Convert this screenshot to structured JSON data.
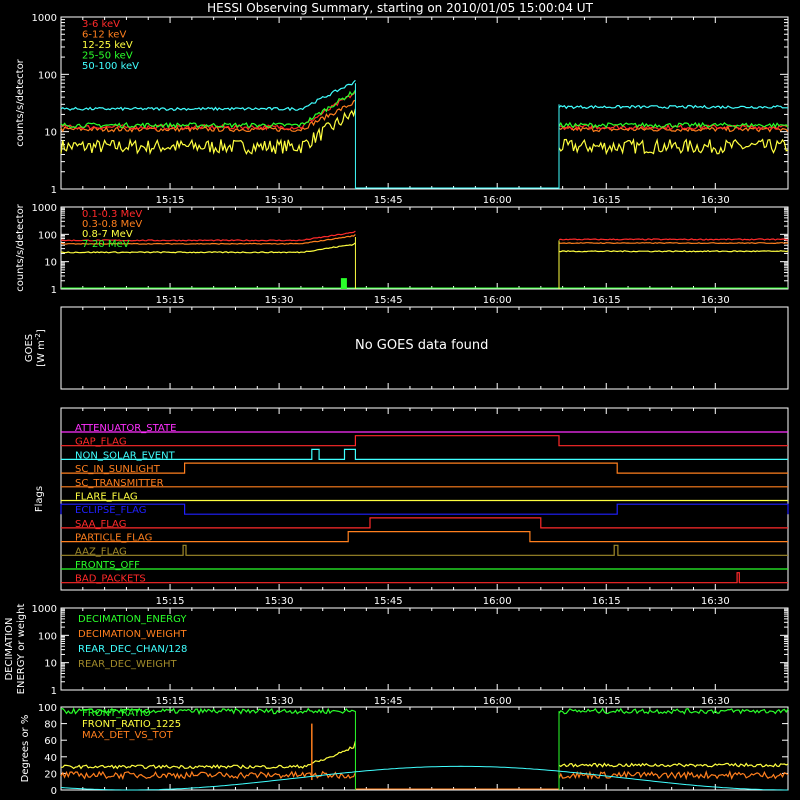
{
  "title": "HESSI Observing Summary, starting on 2010/01/05 15:00:04 UT",
  "time_ticks": [
    "15:15",
    "15:30",
    "15:45",
    "16:00",
    "16:15",
    "16:30"
  ],
  "time_tick_minutes": [
    15,
    30,
    45,
    60,
    75,
    90
  ],
  "colors": {
    "red": "#ff2a2a",
    "orange": "#ff7f1e",
    "yellow": "#ffff40",
    "green": "#2aff2a",
    "cyan": "#40ffff",
    "blue": "#2020ff",
    "magenta": "#ff30ff",
    "olive": "#a08a2a",
    "white": "#ffffff"
  },
  "panels": {
    "p1": {
      "ylabel": "counts/s/detector",
      "ytick_labels": [
        "1",
        "10",
        "100",
        "1000"
      ],
      "legend": [
        {
          "text": "3-6 keV",
          "color": "red"
        },
        {
          "text": "6-12 keV",
          "color": "orange"
        },
        {
          "text": "12-25 keV",
          "color": "yellow"
        },
        {
          "text": "25-50 keV",
          "color": "green"
        },
        {
          "text": "50-100 keV",
          "color": "cyan"
        }
      ]
    },
    "p2": {
      "ylabel": "counts/s/detector",
      "ytick_labels": [
        "1",
        "10",
        "100",
        "1000"
      ],
      "legend": [
        {
          "text": "0.1-0.3 MeV",
          "color": "red"
        },
        {
          "text": "0.3-0.8 MeV",
          "color": "orange"
        },
        {
          "text": "0.8-7 MeV",
          "color": "yellow"
        },
        {
          "text": "7-20 MeV",
          "color": "green"
        }
      ]
    },
    "p3": {
      "ylabel_line1": "GOES",
      "ylabel_line2": "[W m",
      "ylabel_sup": "-2",
      "ylabel_close": "]",
      "message": "No GOES data found"
    },
    "p4": {
      "ylabel": "Flags",
      "flags": [
        {
          "text": "ATTENUATOR_STATE",
          "color": "magenta"
        },
        {
          "text": "GAP_FLAG",
          "color": "red"
        },
        {
          "text": "NON_SOLAR_EVENT",
          "color": "cyan"
        },
        {
          "text": "SC_IN_SUNLIGHT",
          "color": "orange"
        },
        {
          "text": "SC_TRANSMITTER",
          "color": "orange"
        },
        {
          "text": "FLARE_FLAG",
          "color": "yellow"
        },
        {
          "text": "ECLIPSE_FLAG",
          "color": "blue"
        },
        {
          "text": "SAA_FLAG",
          "color": "red"
        },
        {
          "text": "PARTICLE_FLAG",
          "color": "orange"
        },
        {
          "text": "AAZ_FLAG",
          "color": "olive"
        },
        {
          "text": "FRONTS_OFF",
          "color": "green"
        },
        {
          "text": "BAD_PACKETS",
          "color": "red"
        }
      ]
    },
    "p5": {
      "ylabel_line1": "DECIMATION",
      "ylabel_line2": "ENERGY or weight",
      "ytick_labels": [
        "1",
        "10",
        "100",
        "1000"
      ],
      "legend": [
        {
          "text": "DECIMATION_ENERGY",
          "color": "green"
        },
        {
          "text": "DECIMATION_WEIGHT",
          "color": "orange"
        },
        {
          "text": "REAR_DEC_CHAN/128",
          "color": "cyan"
        },
        {
          "text": "REAR_DEC_WEIGHT",
          "color": "olive"
        }
      ]
    },
    "p6": {
      "ylabel": "Degrees or %",
      "ytick_labels": [
        "0",
        "20",
        "40",
        "60",
        "80",
        "100"
      ],
      "legend": [
        {
          "text": "FRONT_RATIO",
          "color": "green"
        },
        {
          "text": "FRONT_RATIO_1225",
          "color": "yellow"
        },
        {
          "text": "MAX_DET_VS_TOT",
          "color": "orange"
        }
      ]
    }
  },
  "chart_data": [
    {
      "type": "line",
      "panel": "p1",
      "xlabel": "",
      "ylabel": "counts/s/detector",
      "x_unit": "minutes after 15:00:04 UT",
      "xlim": [
        0,
        100
      ],
      "ylim": [
        1,
        1000
      ],
      "log_y": true,
      "data_gap_minutes": [
        40.5,
        68.5
      ],
      "series": [
        {
          "name": "3-6 keV",
          "color": "red",
          "pre": 12,
          "post": 12
        },
        {
          "name": "6-12 keV",
          "color": "orange",
          "pre": 11,
          "post": 11
        },
        {
          "name": "12-25 keV",
          "color": "yellow",
          "pre": 5.5,
          "post": 5.5
        },
        {
          "name": "25-50 keV",
          "color": "green",
          "pre": 13,
          "post": 13
        },
        {
          "name": "50-100 keV",
          "color": "cyan",
          "pre": 25,
          "post": 27
        }
      ]
    },
    {
      "type": "line",
      "panel": "p2",
      "xlabel": "",
      "ylabel": "counts/s/detector",
      "x_unit": "minutes after 15:00:04 UT",
      "xlim": [
        0,
        100
      ],
      "ylim": [
        1,
        1000
      ],
      "log_y": true,
      "series": [
        {
          "name": "0.1-0.3 MeV",
          "color": "red",
          "pre": 60,
          "post": 65
        },
        {
          "name": "0.3-0.8 MeV",
          "color": "orange",
          "pre": 45,
          "post": 48
        },
        {
          "name": "0.8-7 MeV",
          "color": "yellow",
          "pre": 22,
          "post": 24
        },
        {
          "name": "7-20 MeV",
          "color": "green",
          "pre": 1,
          "post": 1
        }
      ]
    },
    {
      "type": "line",
      "panel": "p4",
      "xlabel": "",
      "ylabel": "Flags",
      "x_unit": "minutes after 15:00:04 UT",
      "xlim": [
        0,
        100
      ],
      "steps": {
        "ATTENUATOR_STATE": [],
        "GAP_FLAG": [
          [
            40.5,
            68.5
          ]
        ],
        "NON_SOLAR_EVENT": [
          [
            34.5,
            35.5
          ],
          [
            39.0,
            40.5
          ]
        ],
        "SC_IN_SUNLIGHT": [
          [
            17.0,
            76.5
          ]
        ],
        "SC_TRANSMITTER": [],
        "FLARE_FLAG": [],
        "ECLIPSE_FLAG": [
          [
            0,
            17.0
          ],
          [
            76.5,
            100
          ]
        ],
        "SAA_FLAG": [
          [
            42.5,
            66.0
          ]
        ],
        "PARTICLE_FLAG": [
          [
            39.5,
            64.5
          ]
        ],
        "AAZ_FLAG": [
          [
            16.8,
            17.2
          ],
          [
            76.1,
            76.6
          ]
        ],
        "FRONTS_OFF": [],
        "BAD_PACKETS": [
          [
            93.0,
            93.3
          ]
        ]
      }
    },
    {
      "type": "line",
      "panel": "p5",
      "xlabel": "",
      "ylabel": "DECIMATION ENERGY or weight",
      "x_unit": "minutes after 15:00:04 UT",
      "xlim": [
        0,
        100
      ],
      "ylim": [
        1,
        1000
      ],
      "log_y": true,
      "series": [
        {
          "name": "DECIMATION_ENERGY",
          "color": "green",
          "values": []
        },
        {
          "name": "DECIMATION_WEIGHT",
          "color": "orange",
          "values": []
        },
        {
          "name": "REAR_DEC_CHAN/128",
          "color": "cyan",
          "values": []
        },
        {
          "name": "REAR_DEC_WEIGHT",
          "color": "olive",
          "values": []
        }
      ]
    },
    {
      "type": "line",
      "panel": "p6",
      "xlabel": "",
      "ylabel": "Degrees or %",
      "x_unit": "minutes after 15:00:04 UT",
      "xlim": [
        0,
        100
      ],
      "ylim": [
        0,
        100
      ],
      "series": [
        {
          "name": "FRONT_RATIO",
          "color": "green",
          "pre": 95,
          "post": 95
        },
        {
          "name": "FRONT_RATIO_1225",
          "color": "yellow",
          "pre": 28,
          "post": 30
        },
        {
          "name": "MAX_DET_VS_TOT",
          "color": "orange",
          "pre": 18,
          "post": 18
        },
        {
          "name": "",
          "color": "cyan",
          "note": "slow angle variation 0-30 degrees"
        }
      ]
    }
  ]
}
